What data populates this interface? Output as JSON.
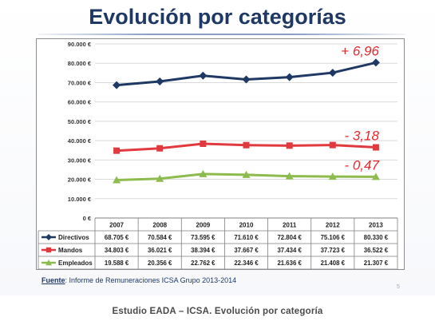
{
  "slide": {
    "title": "Evolución por categorías",
    "source_label": "Fuente",
    "source_text": ": Informe de Remuneraciones ICSA Grupo 2013-2014",
    "page_number": "5",
    "footer": "Estudio EADA – ICSA. Evolución por categoría"
  },
  "chart_data": {
    "type": "line",
    "x": [
      "2007",
      "2008",
      "2009",
      "2010",
      "2011",
      "2012",
      "2013"
    ],
    "ylim": [
      0,
      90000
    ],
    "yticks": [
      0,
      10000,
      20000,
      30000,
      40000,
      50000,
      60000,
      70000,
      80000,
      90000
    ],
    "ytick_labels": [
      "0 €",
      "10.000 €",
      "20.000 €",
      "30.000 €",
      "40.000 €",
      "50.000 €",
      "60.000 €",
      "70.000 €",
      "80.000 €",
      "90.000 €"
    ],
    "grid": true,
    "legend": "table-below",
    "series": [
      {
        "name": "Directivos",
        "color": "#1f3864",
        "marker": "diamond",
        "values": [
          68705,
          70584,
          73595,
          71610,
          72804,
          75106,
          80330
        ],
        "table_labels": [
          "68.705 €",
          "70.584 €",
          "73.595 €",
          "71.610 €",
          "72.804 €",
          "75.106 €",
          "80.330 €"
        ],
        "annotation": "+ 6,96"
      },
      {
        "name": "Mandos",
        "color": "#e03a3e",
        "marker": "square",
        "values": [
          34803,
          36021,
          38394,
          37667,
          37434,
          37723,
          36522
        ],
        "table_labels": [
          "34.803 €",
          "36.021 €",
          "38.394 €",
          "37.667 €",
          "37.434 €",
          "37.723 €",
          "36.522 €"
        ],
        "annotation": "- 3,18"
      },
      {
        "name": "Empleados",
        "color": "#8dbb4e",
        "marker": "triangle",
        "values": [
          19588,
          20356,
          22762,
          22346,
          21636,
          21408,
          21307
        ],
        "table_labels": [
          "19.588 €",
          "20.356 €",
          "22.762 €",
          "22.346 €",
          "21.636 €",
          "21.408 €",
          "21.307 €"
        ],
        "annotation": "- 0,47"
      }
    ],
    "annotation_color": "#e8262b"
  }
}
